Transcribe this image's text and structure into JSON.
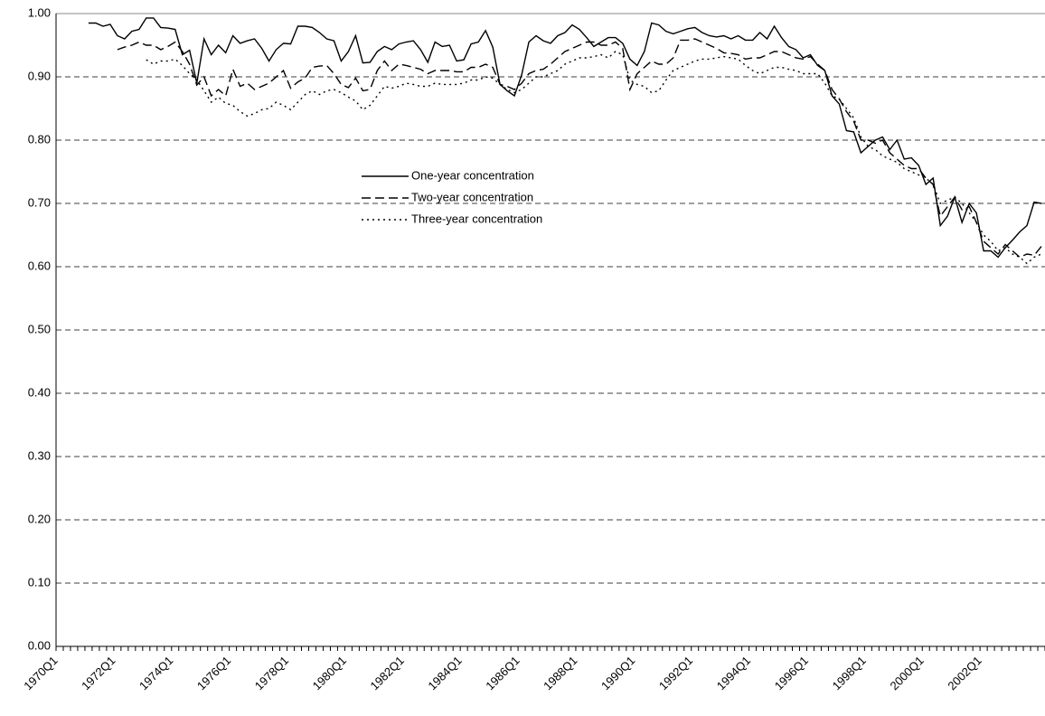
{
  "chart_data": {
    "type": "line",
    "categories": [
      "1970Q1",
      null,
      null,
      null,
      null,
      null,
      null,
      null,
      "1972Q1",
      null,
      null,
      null,
      null,
      null,
      null,
      null,
      "1974Q1",
      null,
      null,
      null,
      null,
      null,
      null,
      null,
      "1976Q1",
      null,
      null,
      null,
      null,
      null,
      null,
      null,
      "1978Q1",
      null,
      null,
      null,
      null,
      null,
      null,
      null,
      "1980Q1",
      null,
      null,
      null,
      null,
      null,
      null,
      null,
      "1982Q1",
      null,
      null,
      null,
      null,
      null,
      null,
      null,
      "1984Q1",
      null,
      null,
      null,
      null,
      null,
      null,
      null,
      "1986Q1",
      null,
      null,
      null,
      null,
      null,
      null,
      null,
      "1988Q1",
      null,
      null,
      null,
      null,
      null,
      null,
      null,
      "1990Q1",
      null,
      null,
      null,
      null,
      null,
      null,
      null,
      "1992Q1",
      null,
      null,
      null,
      null,
      null,
      null,
      null,
      "1994Q1",
      null,
      null,
      null,
      null,
      null,
      null,
      null,
      "1996Q1",
      null,
      null,
      null,
      null,
      null,
      null,
      null,
      "1998Q1",
      null,
      null,
      null,
      null,
      null,
      null,
      null,
      "2000Q1",
      null,
      null,
      null,
      null,
      null,
      null,
      null,
      "2002Q1",
      null,
      null,
      null,
      null,
      null,
      null,
      null,
      null
    ],
    "series": [
      {
        "name": "One-year concentration",
        "color": "#000000",
        "dash": "solid",
        "values": [
          null,
          null,
          null,
          null,
          0.985,
          0.985,
          0.98,
          0.983,
          0.965,
          0.96,
          0.972,
          0.975,
          0.993,
          0.993,
          0.978,
          0.977,
          0.975,
          0.935,
          0.942,
          0.89,
          0.96,
          0.935,
          0.95,
          0.938,
          0.965,
          0.953,
          0.957,
          0.96,
          0.945,
          0.925,
          0.943,
          0.953,
          0.952,
          0.98,
          0.98,
          0.978,
          0.97,
          0.96,
          0.957,
          0.925,
          0.94,
          0.965,
          0.922,
          0.923,
          0.94,
          0.948,
          0.943,
          0.952,
          0.955,
          0.957,
          0.943,
          0.923,
          0.955,
          0.948,
          0.95,
          0.925,
          0.927,
          0.952,
          0.955,
          0.973,
          0.947,
          0.888,
          0.878,
          0.87,
          0.903,
          0.955,
          0.965,
          0.957,
          0.953,
          0.965,
          0.97,
          0.982,
          0.975,
          0.962,
          0.948,
          0.955,
          0.962,
          0.962,
          0.953,
          0.928,
          0.918,
          0.94,
          0.985,
          0.982,
          0.972,
          0.968,
          0.972,
          0.976,
          0.978,
          0.97,
          0.965,
          0.963,
          0.965,
          0.96,
          0.965,
          0.958,
          0.958,
          0.97,
          0.96,
          0.98,
          0.962,
          0.948,
          0.943,
          0.93,
          0.935,
          0.918,
          0.91,
          0.87,
          0.857,
          0.815,
          0.813,
          0.78,
          0.79,
          0.8,
          0.805,
          0.785,
          0.8,
          0.77,
          0.772,
          0.76,
          0.73,
          0.74,
          0.665,
          0.68,
          0.71,
          0.67,
          0.7,
          0.685,
          0.625,
          0.625,
          0.615,
          0.63,
          0.642,
          0.655,
          0.665,
          0.702,
          0.7
        ]
      },
      {
        "name": "Two-year concentration",
        "color": "#000000",
        "dash": "dashed",
        "values": [
          null,
          null,
          null,
          null,
          null,
          null,
          null,
          null,
          0.943,
          0.947,
          0.95,
          0.955,
          0.95,
          0.95,
          0.943,
          0.948,
          0.955,
          0.94,
          0.92,
          0.887,
          0.9,
          0.87,
          0.88,
          0.87,
          0.912,
          0.885,
          0.89,
          0.88,
          0.885,
          0.89,
          0.9,
          0.91,
          0.882,
          0.892,
          0.898,
          0.915,
          0.917,
          0.918,
          0.905,
          0.888,
          0.883,
          0.898,
          0.878,
          0.88,
          0.91,
          0.925,
          0.91,
          0.92,
          0.918,
          0.915,
          0.912,
          0.905,
          0.91,
          0.91,
          0.91,
          0.908,
          0.908,
          0.915,
          0.915,
          0.92,
          0.915,
          0.888,
          0.885,
          0.88,
          0.89,
          0.905,
          0.91,
          0.912,
          0.92,
          0.93,
          0.94,
          0.945,
          0.95,
          0.955,
          0.955,
          0.95,
          0.95,
          0.955,
          0.945,
          0.88,
          0.905,
          0.915,
          0.925,
          0.92,
          0.92,
          0.93,
          0.958,
          0.958,
          0.96,
          0.955,
          0.95,
          0.945,
          0.938,
          0.937,
          0.935,
          0.928,
          0.93,
          0.93,
          0.935,
          0.94,
          0.94,
          0.935,
          0.93,
          0.928,
          0.932,
          0.92,
          0.91,
          0.88,
          0.865,
          0.845,
          0.83,
          0.8,
          0.8,
          0.795,
          0.8,
          0.78,
          0.77,
          0.76,
          0.755,
          0.755,
          0.74,
          0.73,
          0.68,
          0.695,
          0.71,
          0.69,
          0.695,
          0.67,
          0.64,
          0.63,
          0.62,
          0.635,
          0.625,
          0.615,
          0.62,
          0.618,
          0.632
        ]
      },
      {
        "name": "Three-year concentration",
        "color": "#000000",
        "dash": "dotted",
        "values": [
          null,
          null,
          null,
          null,
          null,
          null,
          null,
          null,
          null,
          null,
          null,
          null,
          0.927,
          0.92,
          0.925,
          0.925,
          0.928,
          0.918,
          0.905,
          0.895,
          0.878,
          0.86,
          0.868,
          0.858,
          0.855,
          0.845,
          0.838,
          0.842,
          0.848,
          0.85,
          0.86,
          0.855,
          0.848,
          0.86,
          0.872,
          0.878,
          0.872,
          0.878,
          0.88,
          0.875,
          0.868,
          0.862,
          0.848,
          0.855,
          0.87,
          0.885,
          0.882,
          0.885,
          0.89,
          0.888,
          0.885,
          0.885,
          0.89,
          0.888,
          0.888,
          0.888,
          0.89,
          0.895,
          0.895,
          0.9,
          0.898,
          0.888,
          0.88,
          0.875,
          0.88,
          0.89,
          0.9,
          0.9,
          0.905,
          0.91,
          0.92,
          0.925,
          0.93,
          0.93,
          0.932,
          0.935,
          0.93,
          0.94,
          0.935,
          0.895,
          0.888,
          0.885,
          0.875,
          0.878,
          0.895,
          0.91,
          0.915,
          0.92,
          0.925,
          0.928,
          0.928,
          0.93,
          0.932,
          0.93,
          0.928,
          0.918,
          0.91,
          0.905,
          0.91,
          0.915,
          0.915,
          0.912,
          0.91,
          0.905,
          0.905,
          0.905,
          0.89,
          0.87,
          0.865,
          0.85,
          0.835,
          0.805,
          0.79,
          0.785,
          0.775,
          0.77,
          0.765,
          0.755,
          0.75,
          0.745,
          0.74,
          0.73,
          0.7,
          0.705,
          0.71,
          0.7,
          0.685,
          0.67,
          0.65,
          0.64,
          0.625,
          0.63,
          0.62,
          0.615,
          0.605,
          0.615,
          0.62
        ]
      }
    ],
    "ylim": [
      0,
      1
    ],
    "yticks": [
      {
        "value": 0,
        "label": "0.00"
      },
      {
        "value": 0.1,
        "label": "0.10"
      },
      {
        "value": 0.2,
        "label": "0.20"
      },
      {
        "value": 0.3,
        "label": "0.30"
      },
      {
        "value": 0.4,
        "label": "0.40"
      },
      {
        "value": 0.5,
        "label": "0.50"
      },
      {
        "value": 0.6,
        "label": "0.60"
      },
      {
        "value": 0.7,
        "label": "0.70"
      },
      {
        "value": 0.8,
        "label": "0.80"
      },
      {
        "value": 0.9,
        "label": "0.90"
      },
      {
        "value": 1,
        "label": "1.00"
      }
    ],
    "grid": true
  }
}
